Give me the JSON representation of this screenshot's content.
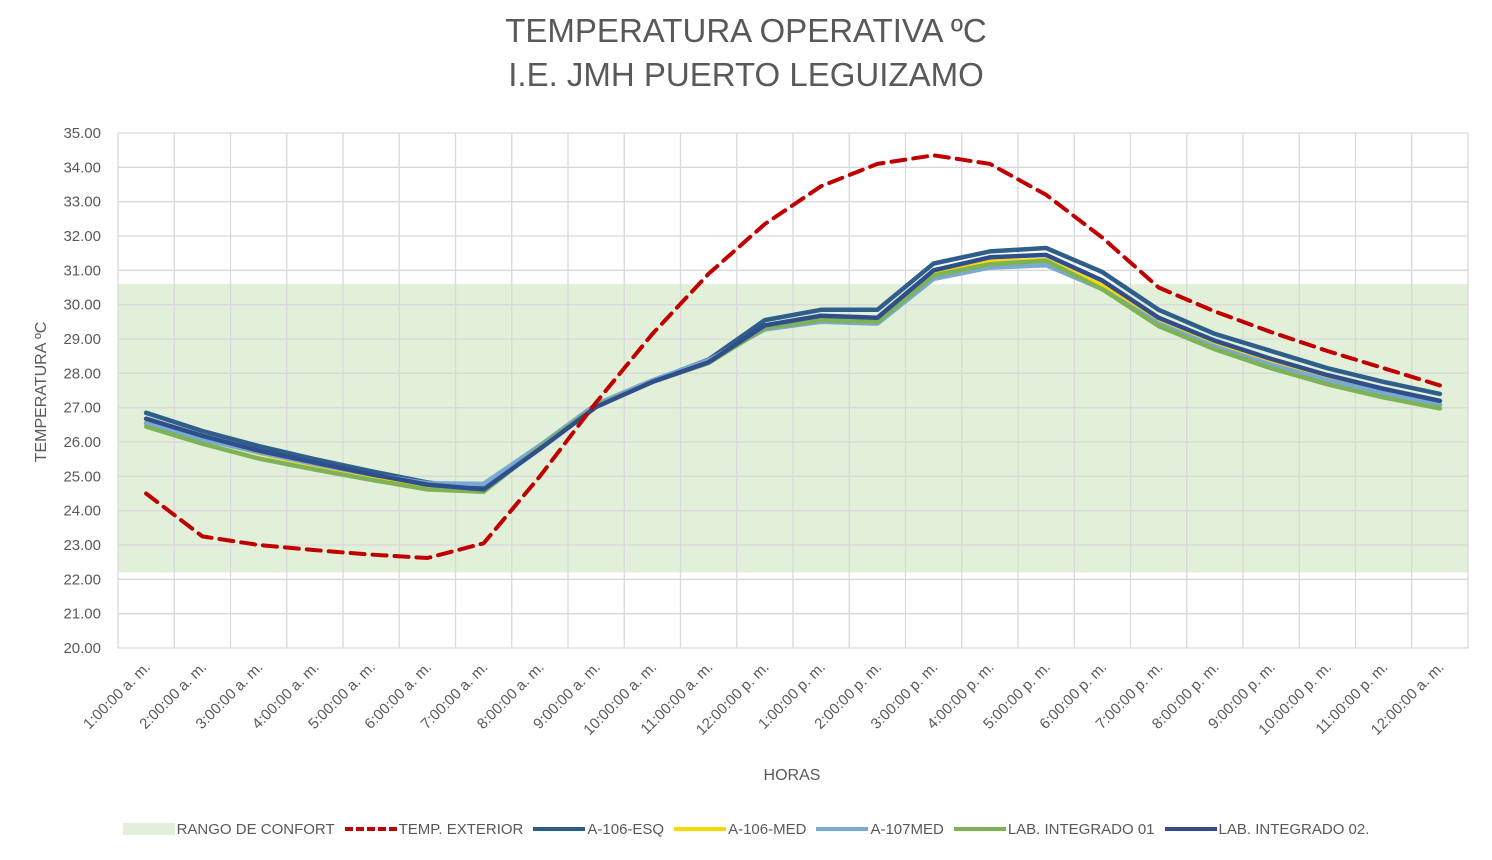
{
  "chart_data": {
    "type": "line",
    "title_lines": [
      "TEMPERATURA OPERATIVA ºC",
      "I.E. JMH PUERTO LEGUIZAMO"
    ],
    "xlabel": "HORAS",
    "ylabel": "TEMPERATURA ºC",
    "ylim": [
      20,
      35
    ],
    "y_ticks": [
      "20.00",
      "21.00",
      "22.00",
      "23.00",
      "24.00",
      "25.00",
      "26.00",
      "27.00",
      "28.00",
      "29.00",
      "30.00",
      "31.00",
      "32.00",
      "33.00",
      "34.00",
      "35.00"
    ],
    "grid": true,
    "legend_position": "bottom",
    "categories": [
      "1:00:00 a. m.",
      "2:00:00 a. m.",
      "3:00:00 a. m.",
      "4:00:00 a. m.",
      "5:00:00 a. m.",
      "6:00:00 a. m.",
      "7:00:00 a. m.",
      "8:00:00 a. m.",
      "9:00:00 a. m.",
      "10:00:00 a. m.",
      "11:00:00 a. m.",
      "12:00:00 p. m.",
      "1:00:00 p. m.",
      "2:00:00 p. m.",
      "3:00:00 p. m.",
      "4:00:00 p. m.",
      "5:00:00 p. m.",
      "6:00:00 p. m.",
      "7:00:00 p. m.",
      "8:00:00 p. m.",
      "9:00:00 p. m.",
      "10:00:00 p. m.",
      "11:00:00 p. m.",
      "12:00:00 a. m."
    ],
    "comfort_band": {
      "name": "RANGO DE CONFORT",
      "range": [
        22.2,
        30.6
      ],
      "color": "#e2efd9"
    },
    "series": [
      {
        "name": "TEMP. EXTERIOR",
        "color": "#c00000",
        "dashed": true,
        "values": [
          24.5,
          23.25,
          23.0,
          22.85,
          22.72,
          22.62,
          23.05,
          25.0,
          27.15,
          29.15,
          30.9,
          32.35,
          33.45,
          34.1,
          34.35,
          34.1,
          33.2,
          31.95,
          30.5,
          29.8,
          29.2,
          28.65,
          28.15,
          27.65
        ]
      },
      {
        "name": "A-106-ESQ",
        "color": "#2e5f8a",
        "dashed": false,
        "values": [
          26.85,
          26.32,
          25.88,
          25.5,
          25.15,
          24.82,
          24.65,
          25.85,
          27.05,
          27.78,
          28.4,
          29.55,
          29.85,
          29.85,
          31.2,
          31.55,
          31.65,
          30.95,
          29.85,
          29.15,
          28.65,
          28.15,
          27.75,
          27.4
        ]
      },
      {
        "name": "A-106-MED",
        "color": "#ffd700",
        "dashed": false,
        "values": [
          26.6,
          26.1,
          25.68,
          25.33,
          25.0,
          24.7,
          24.62,
          25.85,
          27.08,
          27.78,
          28.35,
          29.35,
          29.6,
          29.55,
          30.9,
          31.25,
          31.3,
          30.55,
          29.5,
          28.85,
          28.3,
          27.85,
          27.45,
          27.1
        ]
      },
      {
        "name": "A-107MED",
        "color": "#7aa9d4",
        "dashed": false,
        "values": [
          26.55,
          26.08,
          25.7,
          25.36,
          25.05,
          24.8,
          24.78,
          25.9,
          27.1,
          27.8,
          28.38,
          29.28,
          29.5,
          29.45,
          30.75,
          31.08,
          31.15,
          30.45,
          29.45,
          28.78,
          28.25,
          27.8,
          27.42,
          27.08
        ]
      },
      {
        "name": "LAB. INTEGRADO 01",
        "color": "#7db356",
        "dashed": false,
        "values": [
          26.45,
          25.95,
          25.52,
          25.2,
          24.9,
          24.62,
          24.55,
          25.85,
          27.05,
          27.75,
          28.3,
          29.32,
          29.55,
          29.5,
          30.85,
          31.18,
          31.28,
          30.45,
          29.38,
          28.7,
          28.15,
          27.68,
          27.3,
          26.98
        ]
      },
      {
        "name": "LAB. INTEGRADO 02.",
        "color": "#2f4e8c",
        "dashed": false,
        "values": [
          26.68,
          26.18,
          25.75,
          25.4,
          25.06,
          24.76,
          24.62,
          25.8,
          27.02,
          27.75,
          28.32,
          29.4,
          29.68,
          29.62,
          31.0,
          31.38,
          31.45,
          30.7,
          29.62,
          28.95,
          28.42,
          27.95,
          27.55,
          27.2
        ]
      }
    ]
  }
}
